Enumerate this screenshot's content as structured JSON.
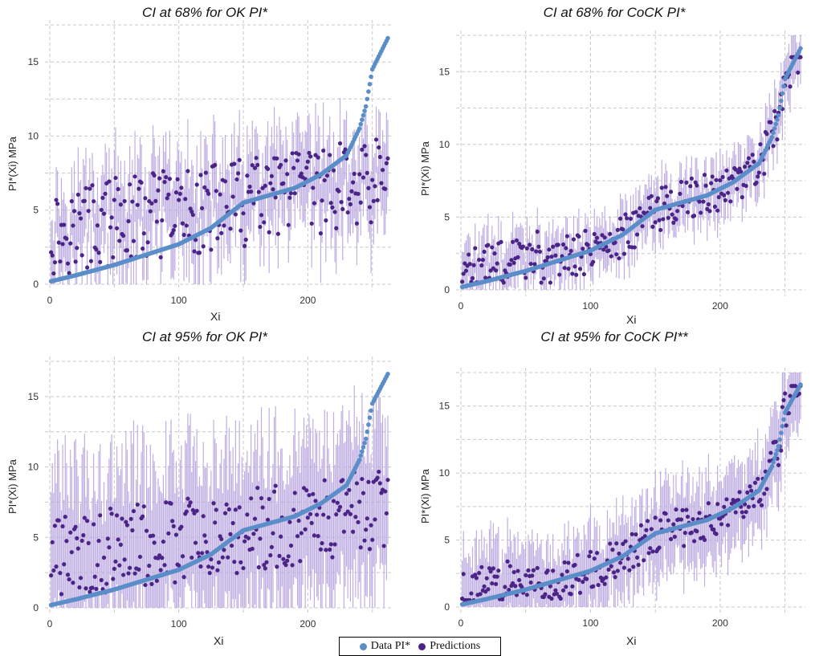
{
  "colors": {
    "data_point": "#5b8ec8",
    "prediction": "#4b2488",
    "ci_bar": "#b9a6df",
    "grid": "#c8c8c8"
  },
  "legend": {
    "data_label": "Data PI*",
    "pred_label": "Predictions"
  },
  "chart_data": [
    {
      "type": "scatter",
      "title": "CI at 68% for OK PI*",
      "xlabel": "Xi",
      "ylabel": "PI*(Xi) MPa",
      "xlim": [
        0,
        262
      ],
      "ylim": [
        0,
        17.5
      ],
      "xticks": [
        0,
        100,
        200
      ],
      "yticks": [
        0,
        5,
        10,
        15
      ],
      "grid": true,
      "series": [
        {
          "name": "Data PI*",
          "kind": "sorted data",
          "anchors": [
            [
              1,
              0.2
            ],
            [
              20,
              0.6
            ],
            [
              50,
              1.3
            ],
            [
              100,
              2.7
            ],
            [
              125,
              3.8
            ],
            [
              150,
              5.5
            ],
            [
              190,
              6.5
            ],
            [
              210,
              7.4
            ],
            [
              230,
              8.7
            ],
            [
              240,
              10.5
            ],
            [
              245,
              12.0
            ],
            [
              250,
              14.5
            ],
            [
              262,
              16.6
            ]
          ]
        },
        {
          "name": "Predictions",
          "kind": "predicted values with error bars",
          "ci_level": "68%",
          "half_width": [
            2.0,
            3.5
          ],
          "prediction_range": [
            0.5,
            12.5
          ]
        }
      ]
    },
    {
      "type": "scatter",
      "title": "CI at 68% for CoCK PI*",
      "xlabel": "Xi",
      "ylabel": "PI*(Xi) MPa",
      "xlim": [
        0,
        262
      ],
      "ylim": [
        0,
        17.5
      ],
      "xticks": [
        0,
        100,
        200
      ],
      "yticks": [
        0,
        5,
        10,
        15
      ],
      "grid": true,
      "series": [
        {
          "name": "Data PI*",
          "kind": "sorted data",
          "anchors": [
            [
              1,
              0.2
            ],
            [
              20,
              0.6
            ],
            [
              50,
              1.3
            ],
            [
              100,
              2.7
            ],
            [
              125,
              3.8
            ],
            [
              150,
              5.5
            ],
            [
              190,
              6.5
            ],
            [
              210,
              7.4
            ],
            [
              230,
              8.7
            ],
            [
              240,
              10.5
            ],
            [
              245,
              12.0
            ],
            [
              250,
              14.5
            ],
            [
              262,
              16.6
            ]
          ]
        },
        {
          "name": "Predictions",
          "kind": "predicted values with error bars",
          "ci_level": "68%",
          "half_width": [
            1.0,
            2.2
          ],
          "prediction_range": [
            0.5,
            16.0
          ]
        }
      ]
    },
    {
      "type": "scatter",
      "title": "CI at 95% for OK PI*",
      "xlabel": "Xi",
      "ylabel": "PI*(Xi) MPa",
      "xlim": [
        0,
        262
      ],
      "ylim": [
        0,
        17.5
      ],
      "xticks": [
        0,
        100,
        200
      ],
      "yticks": [
        0,
        5,
        10,
        15
      ],
      "grid": true,
      "series": [
        {
          "name": "Data PI*",
          "kind": "sorted data",
          "anchors": [
            [
              1,
              0.2
            ],
            [
              20,
              0.6
            ],
            [
              50,
              1.3
            ],
            [
              100,
              2.7
            ],
            [
              125,
              3.8
            ],
            [
              150,
              5.5
            ],
            [
              190,
              6.5
            ],
            [
              210,
              7.4
            ],
            [
              230,
              8.7
            ],
            [
              240,
              10.5
            ],
            [
              245,
              12.0
            ],
            [
              250,
              14.5
            ],
            [
              262,
              16.6
            ]
          ]
        },
        {
          "name": "Predictions",
          "kind": "predicted values with error bars",
          "ci_level": "95%",
          "half_width": [
            4.5,
            6.5
          ],
          "prediction_range": [
            0.5,
            12.5
          ]
        }
      ]
    },
    {
      "type": "scatter",
      "title": "CI at 95% for CoCK PI**",
      "xlabel": "Xi",
      "ylabel": "PI*(Xi) MPa",
      "xlim": [
        0,
        262
      ],
      "ylim": [
        0,
        17.5
      ],
      "xticks": [
        0,
        100,
        200
      ],
      "yticks": [
        0,
        5,
        10,
        15
      ],
      "grid": true,
      "series": [
        {
          "name": "Data PI*",
          "kind": "sorted data",
          "anchors": [
            [
              1,
              0.2
            ],
            [
              20,
              0.6
            ],
            [
              50,
              1.3
            ],
            [
              100,
              2.7
            ],
            [
              125,
              3.8
            ],
            [
              150,
              5.5
            ],
            [
              190,
              6.5
            ],
            [
              210,
              7.4
            ],
            [
              230,
              8.7
            ],
            [
              240,
              10.5
            ],
            [
              245,
              12.0
            ],
            [
              250,
              14.5
            ],
            [
              262,
              16.6
            ]
          ]
        },
        {
          "name": "Predictions",
          "kind": "predicted values with error bars",
          "ci_level": "95%",
          "half_width": [
            1.8,
            3.8
          ],
          "prediction_range": [
            0.5,
            16.5
          ]
        }
      ]
    }
  ]
}
